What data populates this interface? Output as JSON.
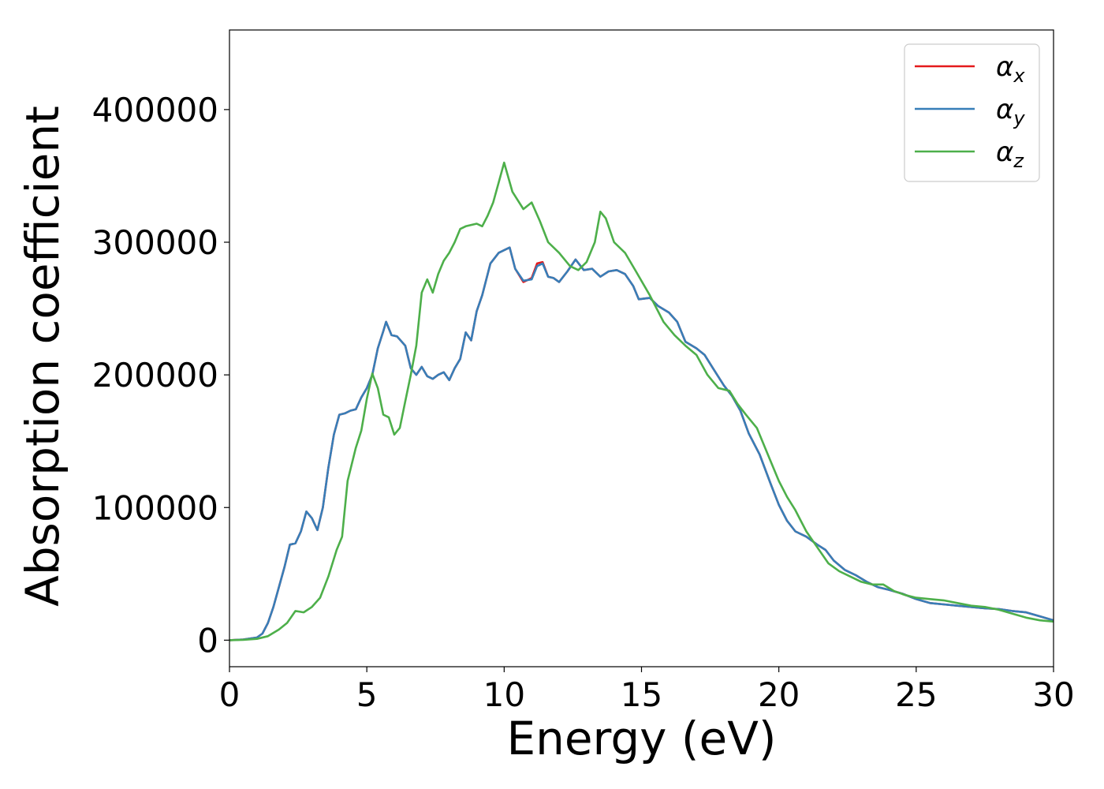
{
  "chart_data": {
    "type": "line",
    "title": "",
    "xlabel": "Energy (eV)",
    "ylabel": "Absorption coefficient",
    "xlim": [
      0,
      30
    ],
    "ylim": [
      -20000,
      460000
    ],
    "xticks": [
      0,
      5,
      10,
      15,
      20,
      25,
      30
    ],
    "yticks": [
      0,
      100000,
      200000,
      300000,
      400000
    ],
    "xtick_labels": [
      "0",
      "5",
      "10",
      "15",
      "20",
      "25",
      "30"
    ],
    "ytick_labels": [
      "0",
      "100000",
      "200000",
      "300000",
      "400000"
    ],
    "grid": false,
    "legend_position": "top-right",
    "series": [
      {
        "name": "α_x",
        "legend_main": "α",
        "legend_sub": "x",
        "color": "#e41a1c",
        "points": [
          [
            0,
            0
          ],
          [
            0.5,
            500
          ],
          [
            1,
            2000
          ],
          [
            1.2,
            5000
          ],
          [
            1.4,
            13000
          ],
          [
            1.6,
            25000
          ],
          [
            1.8,
            40000
          ],
          [
            2,
            55000
          ],
          [
            2.2,
            72000
          ],
          [
            2.4,
            73000
          ],
          [
            2.6,
            82000
          ],
          [
            2.8,
            97000
          ],
          [
            3,
            92000
          ],
          [
            3.2,
            83000
          ],
          [
            3.4,
            100000
          ],
          [
            3.6,
            130000
          ],
          [
            3.8,
            155000
          ],
          [
            4,
            170000
          ],
          [
            4.2,
            171000
          ],
          [
            4.4,
            173000
          ],
          [
            4.6,
            174000
          ],
          [
            4.8,
            183000
          ],
          [
            5,
            190000
          ],
          [
            5.2,
            200000
          ],
          [
            5.4,
            220000
          ],
          [
            5.6,
            233000
          ],
          [
            5.7,
            240000
          ],
          [
            5.9,
            230000
          ],
          [
            6.1,
            229000
          ],
          [
            6.4,
            222000
          ],
          [
            6.6,
            205000
          ],
          [
            6.8,
            200000
          ],
          [
            7,
            206000
          ],
          [
            7.2,
            199000
          ],
          [
            7.4,
            197000
          ],
          [
            7.6,
            200000
          ],
          [
            7.8,
            202000
          ],
          [
            8,
            196000
          ],
          [
            8.2,
            205000
          ],
          [
            8.4,
            212000
          ],
          [
            8.6,
            232000
          ],
          [
            8.8,
            226000
          ],
          [
            9,
            248000
          ],
          [
            9.2,
            260000
          ],
          [
            9.5,
            284000
          ],
          [
            9.8,
            292000
          ],
          [
            10,
            294000
          ],
          [
            10.2,
            296000
          ],
          [
            10.4,
            280000
          ],
          [
            10.7,
            270000
          ],
          [
            11,
            273000
          ],
          [
            11.2,
            284000
          ],
          [
            11.4,
            285000
          ],
          [
            11.6,
            274000
          ],
          [
            11.8,
            273000
          ],
          [
            12,
            270000
          ],
          [
            12.3,
            278000
          ],
          [
            12.6,
            287000
          ],
          [
            12.9,
            279000
          ],
          [
            13.2,
            280000
          ],
          [
            13.5,
            274000
          ],
          [
            13.8,
            278000
          ],
          [
            14.1,
            279000
          ],
          [
            14.4,
            276000
          ],
          [
            14.7,
            267000
          ],
          [
            14.9,
            257000
          ],
          [
            15.3,
            258000
          ],
          [
            15.6,
            252000
          ],
          [
            16,
            247000
          ],
          [
            16.3,
            240000
          ],
          [
            16.6,
            225000
          ],
          [
            17,
            220000
          ],
          [
            17.3,
            215000
          ],
          [
            17.6,
            205000
          ],
          [
            18,
            192000
          ],
          [
            18.3,
            184000
          ],
          [
            18.6,
            173000
          ],
          [
            18.9,
            156000
          ],
          [
            19.3,
            140000
          ],
          [
            19.7,
            118000
          ],
          [
            20,
            102000
          ],
          [
            20.3,
            90000
          ],
          [
            20.6,
            82000
          ],
          [
            21,
            78000
          ],
          [
            21.4,
            72000
          ],
          [
            21.7,
            68000
          ],
          [
            22,
            60000
          ],
          [
            22.4,
            53000
          ],
          [
            22.8,
            49000
          ],
          [
            23.2,
            44000
          ],
          [
            23.6,
            40000
          ],
          [
            24,
            38000
          ],
          [
            24.5,
            35000
          ],
          [
            25,
            31000
          ],
          [
            25.5,
            28000
          ],
          [
            26,
            27000
          ],
          [
            26.5,
            26000
          ],
          [
            27,
            25000
          ],
          [
            27.5,
            24000
          ],
          [
            28,
            23500
          ],
          [
            28.5,
            22000
          ],
          [
            29,
            21000
          ],
          [
            29.5,
            18000
          ],
          [
            30,
            15000
          ]
        ]
      },
      {
        "name": "α_y",
        "legend_main": "α",
        "legend_sub": "y",
        "color": "#377eb8",
        "points": [
          [
            0,
            0
          ],
          [
            0.5,
            500
          ],
          [
            1,
            2000
          ],
          [
            1.2,
            5000
          ],
          [
            1.4,
            13000
          ],
          [
            1.6,
            25000
          ],
          [
            1.8,
            40000
          ],
          [
            2,
            55000
          ],
          [
            2.2,
            72000
          ],
          [
            2.4,
            73000
          ],
          [
            2.6,
            82000
          ],
          [
            2.8,
            97000
          ],
          [
            3,
            92000
          ],
          [
            3.2,
            83000
          ],
          [
            3.4,
            100000
          ],
          [
            3.6,
            130000
          ],
          [
            3.8,
            155000
          ],
          [
            4,
            170000
          ],
          [
            4.2,
            171000
          ],
          [
            4.4,
            173000
          ],
          [
            4.6,
            174000
          ],
          [
            4.8,
            183000
          ],
          [
            5,
            190000
          ],
          [
            5.2,
            200000
          ],
          [
            5.4,
            220000
          ],
          [
            5.6,
            233000
          ],
          [
            5.7,
            240000
          ],
          [
            5.9,
            230000
          ],
          [
            6.1,
            229000
          ],
          [
            6.4,
            222000
          ],
          [
            6.6,
            205000
          ],
          [
            6.8,
            200000
          ],
          [
            7,
            206000
          ],
          [
            7.2,
            199000
          ],
          [
            7.4,
            197000
          ],
          [
            7.6,
            200000
          ],
          [
            7.8,
            202000
          ],
          [
            8,
            196000
          ],
          [
            8.2,
            205000
          ],
          [
            8.4,
            212000
          ],
          [
            8.6,
            232000
          ],
          [
            8.8,
            226000
          ],
          [
            9,
            248000
          ],
          [
            9.2,
            260000
          ],
          [
            9.5,
            284000
          ],
          [
            9.8,
            292000
          ],
          [
            10,
            294000
          ],
          [
            10.2,
            296000
          ],
          [
            10.4,
            280000
          ],
          [
            10.7,
            271000
          ],
          [
            11,
            272000
          ],
          [
            11.2,
            282000
          ],
          [
            11.4,
            284000
          ],
          [
            11.6,
            274000
          ],
          [
            11.8,
            273000
          ],
          [
            12,
            270000
          ],
          [
            12.3,
            278000
          ],
          [
            12.6,
            287000
          ],
          [
            12.9,
            279000
          ],
          [
            13.2,
            280000
          ],
          [
            13.5,
            274000
          ],
          [
            13.8,
            278000
          ],
          [
            14.1,
            279000
          ],
          [
            14.4,
            276000
          ],
          [
            14.7,
            267000
          ],
          [
            14.9,
            257000
          ],
          [
            15.3,
            258000
          ],
          [
            15.6,
            252000
          ],
          [
            16,
            247000
          ],
          [
            16.3,
            240000
          ],
          [
            16.6,
            225000
          ],
          [
            17,
            220000
          ],
          [
            17.3,
            215000
          ],
          [
            17.6,
            205000
          ],
          [
            18,
            192000
          ],
          [
            18.3,
            184000
          ],
          [
            18.6,
            173000
          ],
          [
            18.9,
            156000
          ],
          [
            19.3,
            140000
          ],
          [
            19.7,
            118000
          ],
          [
            20,
            102000
          ],
          [
            20.3,
            90000
          ],
          [
            20.6,
            82000
          ],
          [
            21,
            78000
          ],
          [
            21.4,
            72000
          ],
          [
            21.7,
            68000
          ],
          [
            22,
            60000
          ],
          [
            22.4,
            53000
          ],
          [
            22.8,
            49000
          ],
          [
            23.2,
            44000
          ],
          [
            23.6,
            40000
          ],
          [
            24,
            38000
          ],
          [
            24.5,
            35000
          ],
          [
            25,
            31000
          ],
          [
            25.5,
            28000
          ],
          [
            26,
            27000
          ],
          [
            26.5,
            26000
          ],
          [
            27,
            25000
          ],
          [
            27.5,
            24000
          ],
          [
            28,
            23500
          ],
          [
            28.5,
            22000
          ],
          [
            29,
            21000
          ],
          [
            29.5,
            18000
          ],
          [
            30,
            15000
          ]
        ]
      },
      {
        "name": "α_z",
        "legend_main": "α",
        "legend_sub": "z",
        "color": "#4daf4a",
        "points": [
          [
            0,
            0
          ],
          [
            0.5,
            300
          ],
          [
            1,
            1000
          ],
          [
            1.4,
            3000
          ],
          [
            1.8,
            8000
          ],
          [
            2.1,
            13000
          ],
          [
            2.4,
            22000
          ],
          [
            2.7,
            21000
          ],
          [
            3,
            25000
          ],
          [
            3.3,
            32000
          ],
          [
            3.6,
            48000
          ],
          [
            3.9,
            68000
          ],
          [
            4.1,
            78000
          ],
          [
            4.3,
            120000
          ],
          [
            4.6,
            145000
          ],
          [
            4.8,
            158000
          ],
          [
            5,
            182000
          ],
          [
            5.2,
            201000
          ],
          [
            5.4,
            190000
          ],
          [
            5.6,
            170000
          ],
          [
            5.8,
            168000
          ],
          [
            6,
            155000
          ],
          [
            6.2,
            160000
          ],
          [
            6.4,
            180000
          ],
          [
            6.6,
            200000
          ],
          [
            6.8,
            222000
          ],
          [
            7,
            262000
          ],
          [
            7.2,
            272000
          ],
          [
            7.4,
            262000
          ],
          [
            7.6,
            276000
          ],
          [
            7.8,
            286000
          ],
          [
            8,
            292000
          ],
          [
            8.2,
            300000
          ],
          [
            8.4,
            310000
          ],
          [
            8.6,
            312000
          ],
          [
            8.8,
            313000
          ],
          [
            9,
            314000
          ],
          [
            9.2,
            312000
          ],
          [
            9.4,
            320000
          ],
          [
            9.6,
            330000
          ],
          [
            9.8,
            345000
          ],
          [
            10,
            360000
          ],
          [
            10.3,
            338000
          ],
          [
            10.7,
            325000
          ],
          [
            11,
            330000
          ],
          [
            11.3,
            316000
          ],
          [
            11.6,
            300000
          ],
          [
            12,
            292000
          ],
          [
            12.4,
            282000
          ],
          [
            12.7,
            279000
          ],
          [
            13,
            285000
          ],
          [
            13.3,
            300000
          ],
          [
            13.5,
            323000
          ],
          [
            13.7,
            318000
          ],
          [
            14,
            300000
          ],
          [
            14.4,
            292000
          ],
          [
            14.8,
            278000
          ],
          [
            15.3,
            260000
          ],
          [
            15.8,
            240000
          ],
          [
            16.2,
            230000
          ],
          [
            16.6,
            222000
          ],
          [
            17,
            215000
          ],
          [
            17.4,
            200000
          ],
          [
            17.8,
            190000
          ],
          [
            18.2,
            188000
          ],
          [
            18.5,
            178000
          ],
          [
            18.8,
            170000
          ],
          [
            19.2,
            160000
          ],
          [
            19.6,
            140000
          ],
          [
            20,
            120000
          ],
          [
            20.3,
            108000
          ],
          [
            20.6,
            98000
          ],
          [
            21,
            82000
          ],
          [
            21.4,
            70000
          ],
          [
            21.8,
            58000
          ],
          [
            22.2,
            52000
          ],
          [
            22.6,
            48000
          ],
          [
            23,
            44000
          ],
          [
            23.4,
            42000
          ],
          [
            23.8,
            42000
          ],
          [
            24.2,
            37000
          ],
          [
            24.6,
            34000
          ],
          [
            25,
            32000
          ],
          [
            25.5,
            31000
          ],
          [
            26,
            30000
          ],
          [
            26.5,
            28000
          ],
          [
            27,
            26000
          ],
          [
            27.5,
            25000
          ],
          [
            28,
            23000
          ],
          [
            28.5,
            20000
          ],
          [
            29,
            17000
          ],
          [
            29.5,
            15000
          ],
          [
            30,
            14000
          ]
        ]
      }
    ]
  }
}
